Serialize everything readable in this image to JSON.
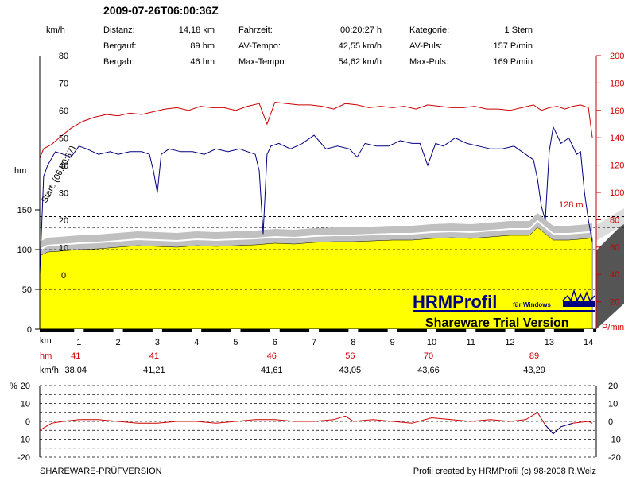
{
  "header": {
    "title": "2009-07-26T06:00:36Z",
    "col1": [
      {
        "label": "Distanz:",
        "value": "14,18 km"
      },
      {
        "label": "Bergauf:",
        "value": "89 hm"
      },
      {
        "label": "Bergab:",
        "value": "46 hm"
      }
    ],
    "col2": [
      {
        "label": "Fahrzeit:",
        "value": "00:20:27 h"
      },
      {
        "label": "AV-Tempo:",
        "value": "42,55 km/h"
      },
      {
        "label": "Max-Tempo:",
        "value": "54,62 km/h"
      }
    ],
    "col3": [
      {
        "label": "Kategorie:",
        "value": "1 Stern"
      },
      {
        "label": "AV-Puls:",
        "value": "157 P/min"
      },
      {
        "label": "Max-Puls:",
        "value": "169 P/min"
      }
    ]
  },
  "axes": {
    "speed_unit": "km/h",
    "speed_ticks": [
      "80",
      "70",
      "60",
      "50",
      "40",
      "30",
      "20",
      "10",
      "0"
    ],
    "alt_unit": "hm",
    "alt_ticks": [
      "150",
      "100",
      "50",
      "0"
    ],
    "pulse_ticks": [
      "200",
      "180",
      "160",
      "140",
      "120",
      "100",
      "80",
      "60",
      "40",
      "20"
    ],
    "pulse_unit": "P/min",
    "dist_unit": "km",
    "dist_ticks": [
      "1",
      "2",
      "3",
      "4",
      "5",
      "6",
      "7",
      "8",
      "9",
      "10",
      "11",
      "12",
      "13",
      "14"
    ]
  },
  "annotations": {
    "start_label": "Start: (06:00:37)",
    "ref_line_label": "128 m"
  },
  "summary_rows": {
    "hm_label": "hm",
    "hm_values": [
      "41",
      "41",
      "46",
      "56",
      "70",
      "89"
    ],
    "kmh_label": "km/h",
    "kmh_values": [
      "38,04",
      "41,21",
      "41,61",
      "43,05",
      "43,66",
      "43,29"
    ]
  },
  "gradient_panel": {
    "unit": "%",
    "left_ticks": [
      "20",
      "10",
      "0",
      "-10",
      "-20"
    ],
    "right_ticks": [
      "20",
      "10",
      "0",
      "-10",
      "-20"
    ]
  },
  "logo": {
    "brand": "HRMProfil",
    "brand_sub": "für Windows",
    "trial": "Shareware Trial  Version"
  },
  "footer": {
    "left": "SHAREWARE-PRÜFVERSION",
    "right": "Profil created by HRMProfil (c) 98-2008 R.Welz"
  },
  "chart_data": [
    {
      "type": "line",
      "xlabel": "km",
      "xlim": [
        0,
        14.2
      ],
      "series": [
        {
          "axis": "speed_kmh",
          "ylim": [
            0,
            80
          ],
          "color": "#000080",
          "x": [
            0,
            0.1,
            0.2,
            0.4,
            0.6,
            0.8,
            1.0,
            1.2,
            1.5,
            1.8,
            2.0,
            2.3,
            2.6,
            2.8,
            2.9,
            3.0,
            3.1,
            3.3,
            3.6,
            3.9,
            4.2,
            4.5,
            4.8,
            5.1,
            5.3,
            5.5,
            5.6,
            5.7,
            5.8,
            5.9,
            6.1,
            6.4,
            6.7,
            7.0,
            7.3,
            7.6,
            7.9,
            8.1,
            8.3,
            8.6,
            8.9,
            9.2,
            9.5,
            9.7,
            9.9,
            10.1,
            10.3,
            10.6,
            10.9,
            11.2,
            11.5,
            11.8,
            12.1,
            12.4,
            12.6,
            12.7,
            12.8,
            12.9,
            13.0,
            13.1,
            13.3,
            13.5,
            13.7,
            13.8,
            13.9,
            14.0,
            14.1
          ],
          "y": [
            0,
            36,
            40,
            45,
            44,
            43,
            47,
            46,
            44,
            45,
            44,
            45,
            45,
            44,
            38,
            30,
            44,
            46,
            45,
            45,
            44,
            46,
            45,
            46,
            45,
            44,
            38,
            15,
            44,
            47,
            48,
            46,
            48,
            51,
            46,
            47,
            46,
            43,
            48,
            47,
            47,
            49,
            48,
            48,
            40,
            48,
            47,
            50,
            48,
            47,
            46,
            46,
            47,
            44,
            42,
            35,
            25,
            20,
            45,
            54,
            48,
            50,
            44,
            45,
            30,
            20,
            12
          ]
        },
        {
          "axis": "pulse_bpm",
          "ylim": [
            0,
            200
          ],
          "color": "#cc0000",
          "x": [
            0,
            0.1,
            0.3,
            0.5,
            0.8,
            1.1,
            1.4,
            1.7,
            2.0,
            2.3,
            2.6,
            2.9,
            3.2,
            3.5,
            3.8,
            4.1,
            4.4,
            4.7,
            5.0,
            5.3,
            5.6,
            5.8,
            6.0,
            6.3,
            6.6,
            6.9,
            7.2,
            7.5,
            7.8,
            8.1,
            8.4,
            8.7,
            9.0,
            9.3,
            9.6,
            9.9,
            10.2,
            10.5,
            10.8,
            11.1,
            11.4,
            11.7,
            12.0,
            12.3,
            12.6,
            12.8,
            13.0,
            13.2,
            13.4,
            13.6,
            13.8,
            14.0,
            14.1
          ],
          "y": [
            125,
            132,
            135,
            140,
            147,
            152,
            155,
            157,
            156,
            158,
            157,
            159,
            161,
            162,
            160,
            163,
            162,
            162,
            160,
            163,
            165,
            150,
            166,
            165,
            164,
            164,
            163,
            161,
            165,
            164,
            162,
            163,
            162,
            163,
            161,
            164,
            163,
            162,
            162,
            163,
            161,
            161,
            160,
            162,
            164,
            160,
            162,
            163,
            161,
            163,
            164,
            162,
            140
          ]
        },
        {
          "axis": "altitude_hm",
          "ylim": [
            0,
            200
          ],
          "color": "#ffff00",
          "fill": true,
          "x": [
            0,
            0.2,
            0.5,
            1,
            1.5,
            2,
            2.5,
            3,
            3.5,
            4,
            4.5,
            5,
            5.5,
            6,
            6.5,
            7,
            7.5,
            8,
            8.5,
            9,
            9.5,
            10,
            10.5,
            11,
            11.5,
            12,
            12.5,
            12.7,
            12.9,
            13.1,
            13.5,
            14,
            14.1
          ],
          "y": [
            92,
            97,
            98,
            100,
            101,
            103,
            105,
            104,
            103,
            105,
            104,
            105,
            106,
            108,
            107,
            109,
            110,
            110,
            111,
            112,
            112,
            114,
            115,
            114,
            116,
            118,
            118,
            128,
            120,
            112,
            112,
            114,
            115
          ]
        }
      ],
      "ref_line_alt": 128,
      "ref_line_speed": 30
    },
    {
      "type": "line",
      "name": "gradient",
      "yunit": "%",
      "ylim": [
        -20,
        20
      ],
      "x": [
        0,
        0.3,
        0.6,
        1,
        1.5,
        2,
        2.5,
        3,
        3.5,
        4,
        4.5,
        5,
        5.5,
        6,
        6.5,
        7,
        7.5,
        7.8,
        8,
        8.5,
        9,
        9.5,
        10,
        10.5,
        11,
        11.5,
        12,
        12.4,
        12.7,
        12.9,
        13.1,
        13.3,
        13.6,
        14,
        14.1
      ],
      "y": [
        -5,
        -1,
        0,
        1,
        1,
        0,
        -1,
        -1,
        0,
        0,
        -1,
        0,
        1,
        1,
        0,
        0,
        1,
        3,
        0,
        1,
        0,
        -1,
        2,
        1,
        0,
        1,
        0,
        1,
        5,
        -2,
        -7,
        -3,
        -1,
        0,
        -1
      ]
    }
  ]
}
